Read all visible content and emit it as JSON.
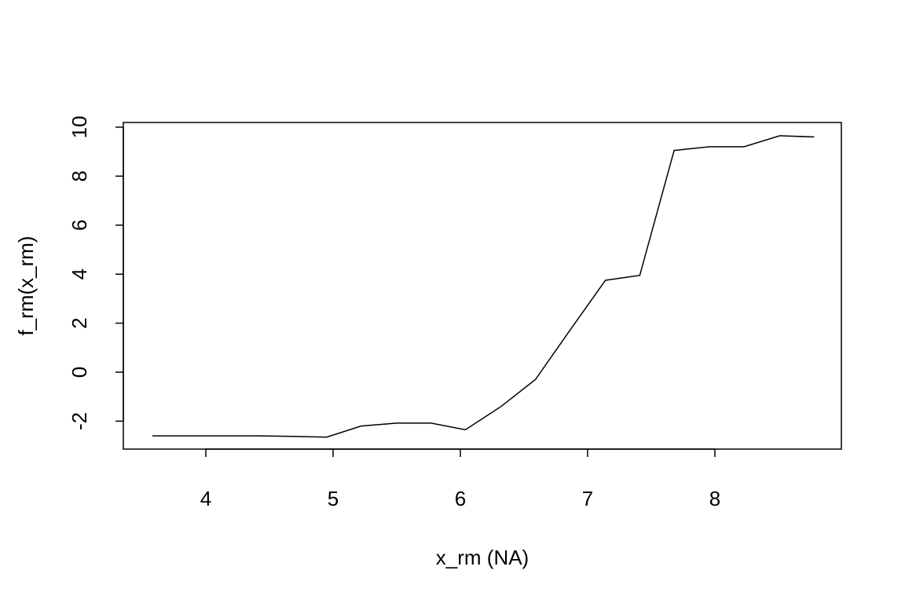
{
  "chart_data": {
    "type": "line",
    "x_label": "x_rm (NA)",
    "y_label": "f_rm(x_rm)",
    "x": [
      3.58,
      3.85,
      4.13,
      4.4,
      4.67,
      4.95,
      5.22,
      5.5,
      5.77,
      6.04,
      6.32,
      6.59,
      6.86,
      7.14,
      7.41,
      7.68,
      7.96,
      8.23,
      8.51,
      8.78
    ],
    "series": [
      {
        "color": "#000000",
        "values": [
          -2.6,
          -2.6,
          -2.6,
          -2.6,
          -2.62,
          -2.65,
          -2.2,
          -2.08,
          -2.08,
          -2.35,
          -1.4,
          -0.3,
          1.7,
          3.75,
          3.95,
          9.05,
          9.2,
          9.2,
          9.65,
          9.6
        ]
      }
    ],
    "xlim": [
      3.352,
      8.994
    ],
    "ylim": [
      -3.14,
      10.19
    ],
    "xticks": [
      4,
      5,
      6,
      7,
      8
    ],
    "yticks": [
      -2,
      0,
      2,
      4,
      6,
      8,
      10
    ]
  }
}
